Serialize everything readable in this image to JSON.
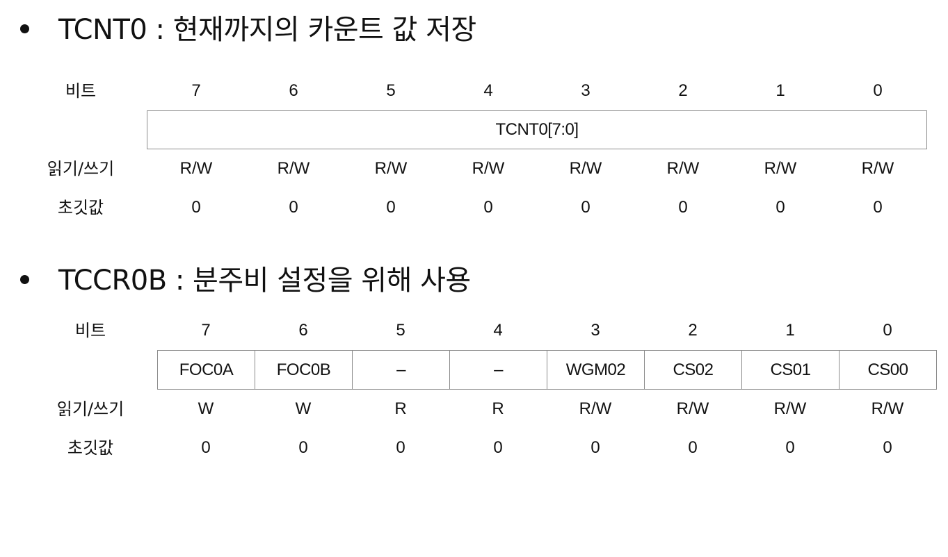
{
  "sections": [
    {
      "title": "TCNT0 : 현재까지의 카운트 값 저장",
      "bit_label": "비트",
      "access_label": "읽기/쓰기",
      "init_label": "초깃값",
      "bits": [
        "7",
        "6",
        "5",
        "4",
        "3",
        "2",
        "1",
        "0"
      ],
      "field": "TCNT0[7:0]",
      "access": [
        "R/W",
        "R/W",
        "R/W",
        "R/W",
        "R/W",
        "R/W",
        "R/W",
        "R/W"
      ],
      "init": [
        "0",
        "0",
        "0",
        "0",
        "0",
        "0",
        "0",
        "0"
      ]
    },
    {
      "title": "TCCR0B : 분주비 설정을 위해 사용",
      "bit_label": "비트",
      "access_label": "읽기/쓰기",
      "init_label": "초깃값",
      "bits": [
        "7",
        "6",
        "5",
        "4",
        "3",
        "2",
        "1",
        "0"
      ],
      "fields": [
        "FOC0A",
        "FOC0B",
        "–",
        "–",
        "WGM02",
        "CS02",
        "CS01",
        "CS00"
      ],
      "access": [
        "W",
        "W",
        "R",
        "R",
        "R/W",
        "R/W",
        "R/W",
        "R/W"
      ],
      "init": [
        "0",
        "0",
        "0",
        "0",
        "0",
        "0",
        "0",
        "0"
      ]
    }
  ]
}
